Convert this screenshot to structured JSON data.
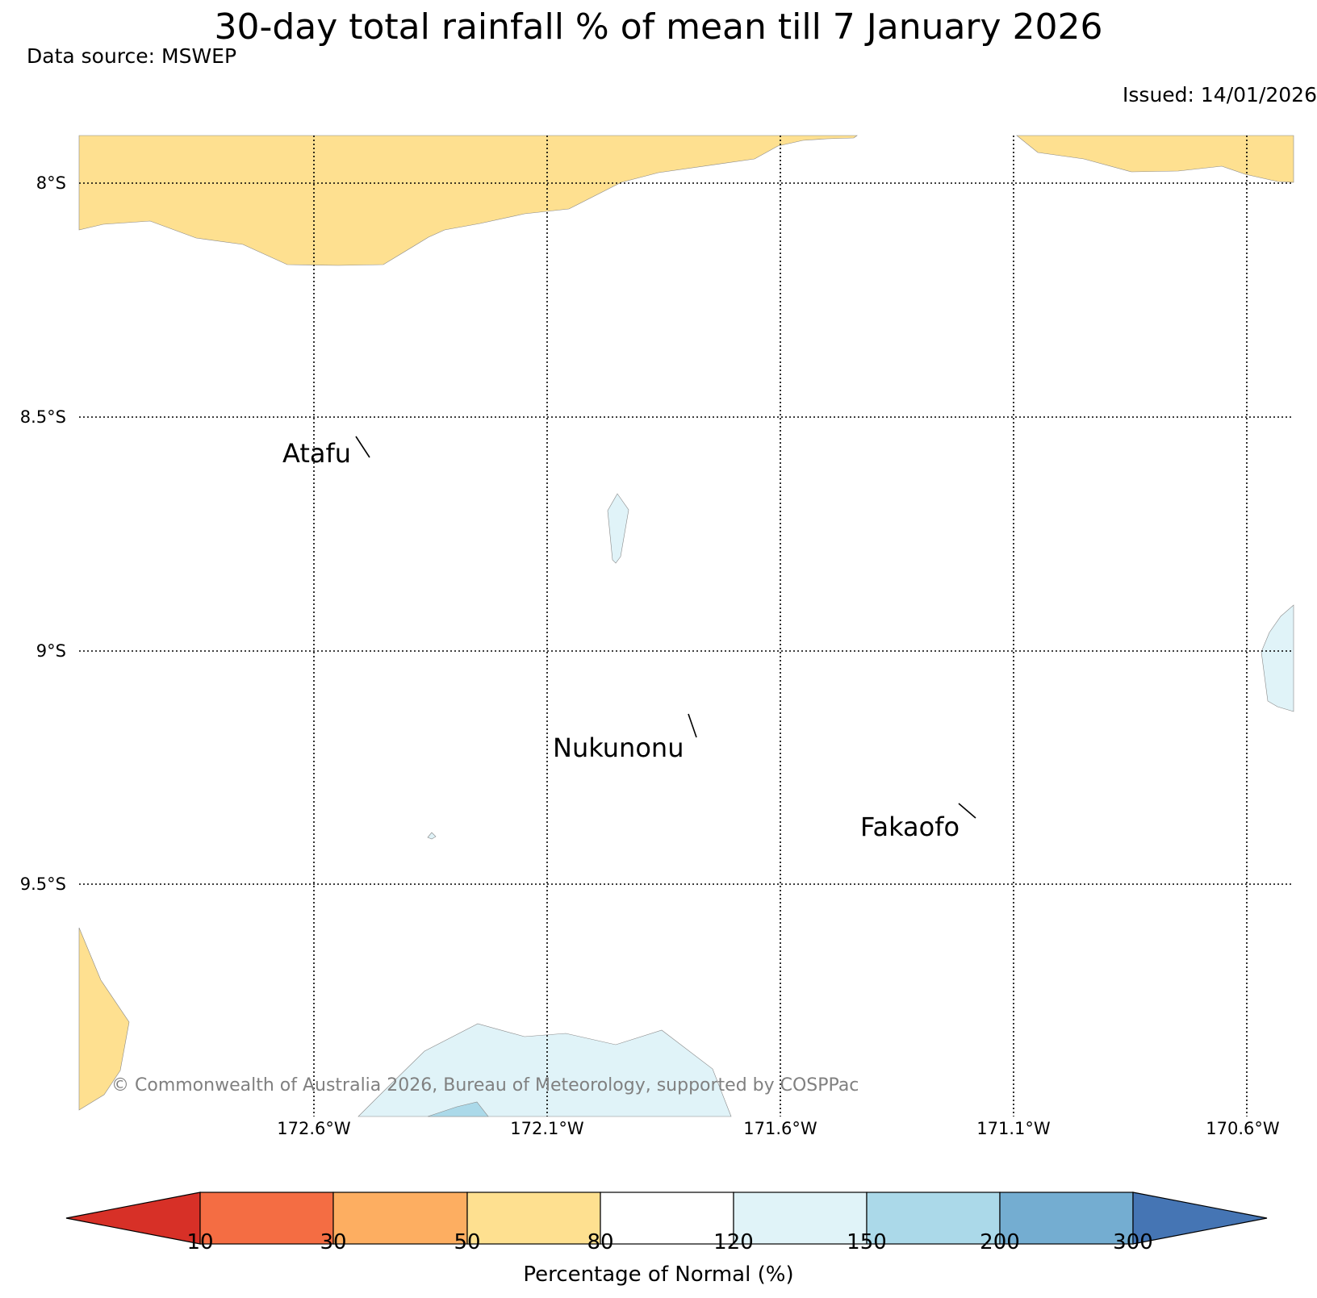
{
  "title": "30-day total rainfall % of mean till 7 January 2026",
  "data_source": "Data source: MSWEP",
  "issued": "Issued: 14/01/2026",
  "copyright": "© Commonwealth of Australia 2026, Bureau of Meteorology, supported by COSPPac",
  "latitude_labels": [
    "8°S",
    "8.5°S",
    "9°S",
    "9.5°S"
  ],
  "longitude_labels": [
    "172.6°W",
    "172.1°W",
    "171.6°W",
    "171.1°W",
    "170.6°W"
  ],
  "places": [
    {
      "name": "Atafu"
    },
    {
      "name": "Nukunonu"
    },
    {
      "name": "Fakaofo"
    }
  ],
  "colorbar": {
    "label": "Percentage of Normal (%)",
    "ticks": [
      "10",
      "30",
      "50",
      "80",
      "120",
      "150",
      "200",
      "300"
    ],
    "colors": [
      "#d73027",
      "#f46d43",
      "#fdae61",
      "#fee090",
      "#ffffff",
      "#e0f3f8",
      "#abd9e9",
      "#74add1",
      "#4575b4"
    ]
  }
}
